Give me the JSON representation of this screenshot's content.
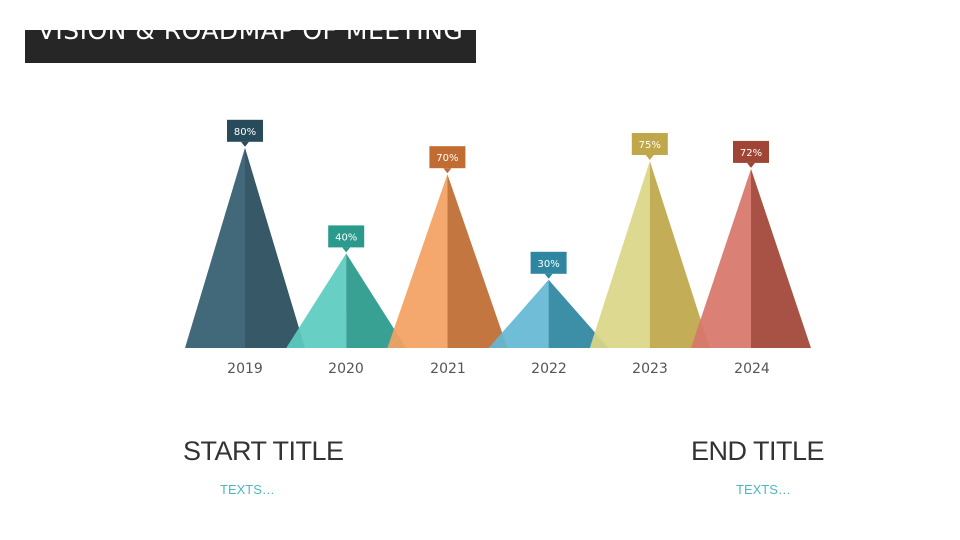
{
  "slide": {
    "title": "VISION & ROADMAP OF MEETING",
    "start_title": "START TITLE",
    "start_text": "TEXTS…",
    "end_title": "END TITLE",
    "end_text": "TEXTS…"
  },
  "chart_data": {
    "type": "bar",
    "categories": [
      "2019",
      "2020",
      "2021",
      "2022",
      "2023",
      "2024"
    ],
    "values": [
      80,
      40,
      70,
      30,
      75,
      72
    ],
    "data_labels": [
      "80%",
      "40%",
      "70%",
      "30%",
      "75%",
      "72%"
    ],
    "ylim": [
      0,
      100
    ],
    "colors": [
      {
        "light": "#345e70",
        "dark": "#284b5b",
        "label": "#284b5b"
      },
      {
        "light": "#5ccbc0",
        "dark": "#2a9a8c",
        "label": "#2a9a8c"
      },
      {
        "light": "#f3a163",
        "dark": "#c06c33",
        "label": "#c06c33"
      },
      {
        "light": "#64b8d3",
        "dark": "#2e86a1",
        "label": "#2e86a1"
      },
      {
        "light": "#dad689",
        "dark": "#bfa74a",
        "label": "#bfa74a"
      },
      {
        "light": "#d7766a",
        "dark": "#a04536",
        "label": "#a04536"
      }
    ]
  }
}
